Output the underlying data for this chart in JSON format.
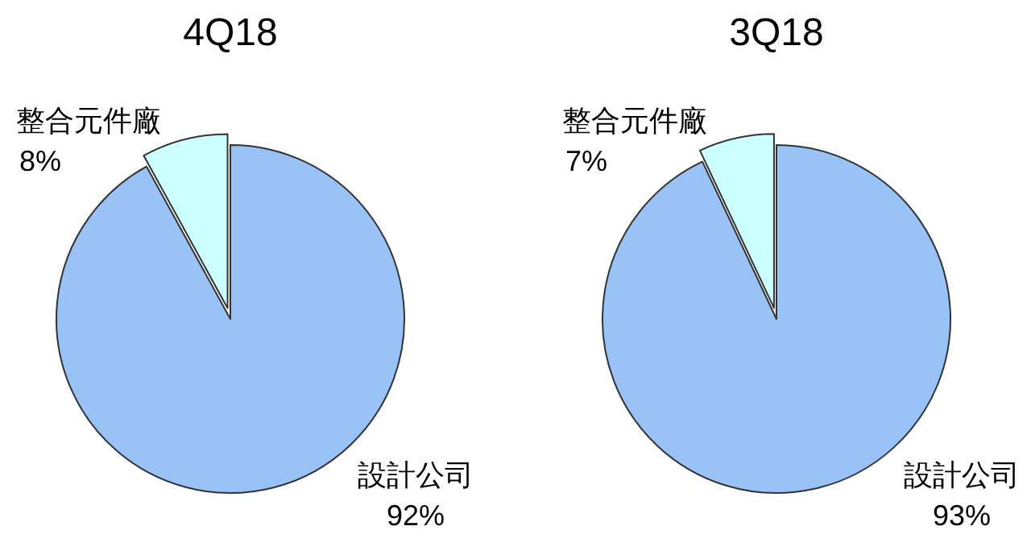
{
  "chart_data": [
    {
      "type": "pie",
      "title": "4Q18",
      "categories": [
        "整合元件廠",
        "設計公司"
      ],
      "values": [
        8,
        92
      ],
      "value_labels": [
        "8%",
        "92%"
      ],
      "colors": [
        "#ccffff",
        "#99c3f7"
      ]
    },
    {
      "type": "pie",
      "title": "3Q18",
      "categories": [
        "整合元件廠",
        "設計公司"
      ],
      "values": [
        7,
        93
      ],
      "value_labels": [
        "7%",
        "93%"
      ],
      "colors": [
        "#ccffff",
        "#99c3f7"
      ]
    }
  ]
}
